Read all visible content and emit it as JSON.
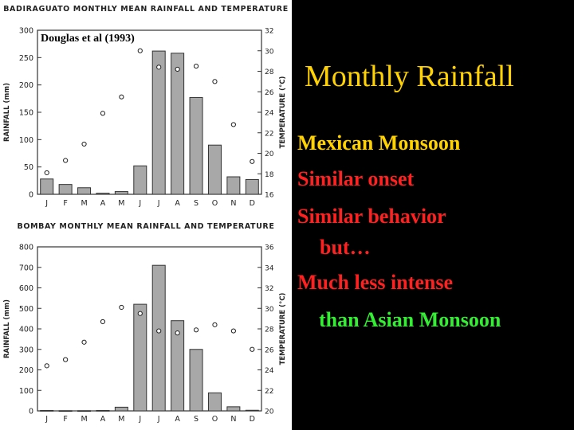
{
  "slide": {
    "heading": "Monthly Rainfall",
    "citation": "Douglas et al (1993)",
    "bullets": [
      "Mexican Monsoon",
      "Similar onset",
      "Similar behavior",
      "but…",
      "Much less intense",
      "than Asian Monsoon"
    ],
    "colors": {
      "background": "#000000",
      "heading": "#ffd200",
      "emphasis": "#ff2020",
      "contrast": "#33ee33",
      "bar_fill": "#a8a8a8"
    }
  },
  "chart_data": [
    {
      "type": "bar",
      "title": "BADIRAGUATO MONTHLY MEAN RAINFALL AND TEMPERATURE",
      "categories": [
        "J",
        "F",
        "M",
        "A",
        "M",
        "J",
        "J",
        "A",
        "S",
        "O",
        "N",
        "D"
      ],
      "ylabel": "RAINFALL (mm)",
      "y2label": "TEMPERATURE (°C)",
      "ylim": [
        0,
        300
      ],
      "y2lim": [
        16,
        32
      ],
      "yticks": [
        0,
        50,
        100,
        150,
        200,
        250,
        300
      ],
      "y2ticks": [
        16,
        18,
        20,
        22,
        24,
        26,
        28,
        30,
        32
      ],
      "series": [
        {
          "values": [
            28,
            18,
            12,
            2,
            5,
            52,
            262,
            258,
            177,
            90,
            32,
            27
          ]
        },
        {
          "values": [
            18.1,
            19.3,
            20.9,
            23.9,
            25.5,
            30.0,
            28.4,
            28.2,
            28.5,
            27.0,
            22.8,
            19.2
          ]
        }
      ]
    },
    {
      "type": "bar",
      "title": "BOMBAY MONTHLY MEAN RAINFALL AND TEMPERATURE",
      "categories": [
        "J",
        "F",
        "M",
        "A",
        "M",
        "J",
        "J",
        "A",
        "S",
        "O",
        "N",
        "D"
      ],
      "ylabel": "RAINFALL (mm)",
      "y2label": "TEMPERATURE (°C)",
      "ylim": [
        0,
        800
      ],
      "y2lim": [
        20,
        36
      ],
      "yticks": [
        0,
        100,
        200,
        300,
        400,
        500,
        600,
        700,
        800
      ],
      "y2ticks": [
        20,
        22,
        24,
        26,
        28,
        30,
        32,
        34,
        36
      ],
      "series": [
        {
          "values": [
            2,
            1,
            1,
            2,
            18,
            520,
            710,
            440,
            300,
            88,
            20,
            3
          ]
        },
        {
          "values": [
            24.4,
            25.0,
            26.7,
            28.7,
            30.1,
            29.5,
            27.8,
            27.6,
            27.9,
            28.4,
            27.8,
            26.0
          ]
        }
      ]
    }
  ]
}
